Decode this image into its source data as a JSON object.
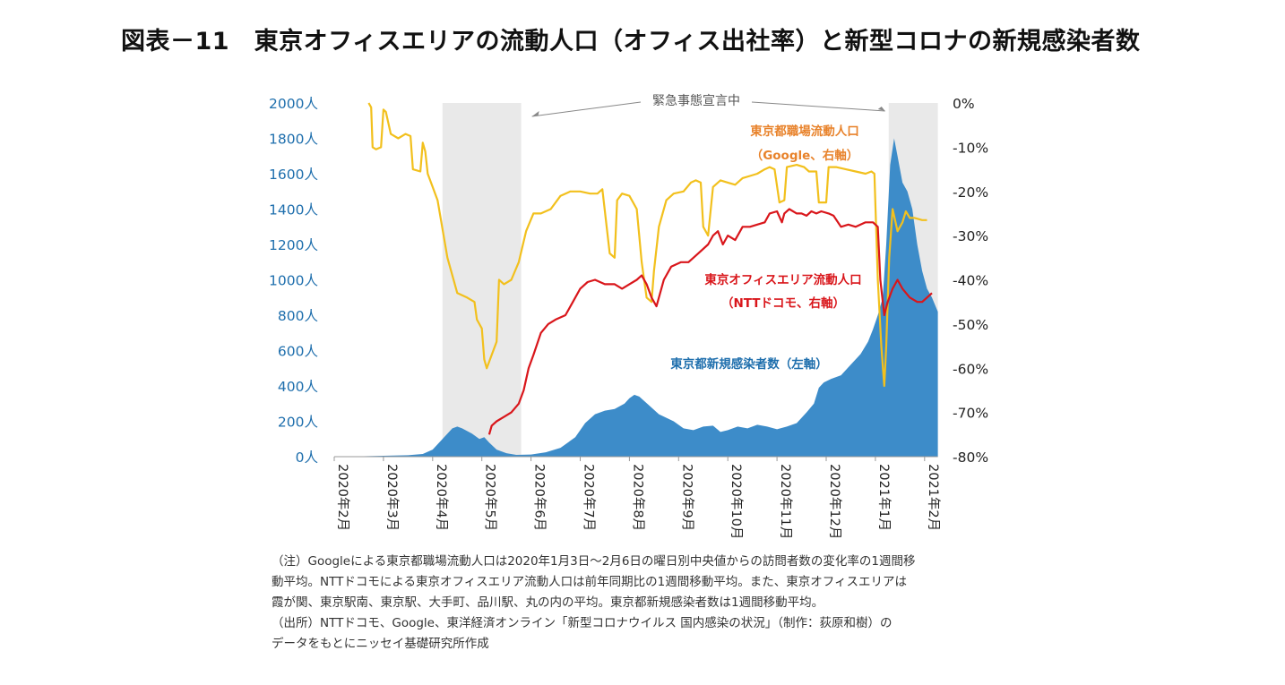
{
  "title": "図表－11　東京オフィスエリアの流動人口（オフィス出社率）と新型コロナの新規感染者数",
  "colors": {
    "cases": "#3d8cc9",
    "google": "#f2c01d",
    "ntt": "#d9161b",
    "shade": "#e9e9e9",
    "left_tick": "#1f6fad",
    "google_label": "#e8822a",
    "ntt_label": "#d9161b",
    "cases_label": "#1f6fad"
  },
  "chart_data": {
    "type": "area+line",
    "y_left": {
      "range": [
        0,
        2000
      ],
      "ticks": [
        "0人",
        "200人",
        "400人",
        "600人",
        "800人",
        "1000人",
        "1200人",
        "1400人",
        "1600人",
        "1800人",
        "2000人"
      ]
    },
    "y_right": {
      "range": [
        -80,
        0
      ],
      "ticks": [
        "-80%",
        "-70%",
        "-60%",
        "-50%",
        "-40%",
        "-30%",
        "-20%",
        "-10%",
        "0%"
      ]
    },
    "x_ticks": [
      "2020年2月",
      "2020年3月",
      "2020年4月",
      "2020年5月",
      "2020年6月",
      "2020年7月",
      "2020年8月",
      "2020年9月",
      "2020年10月",
      "2020年11月",
      "2020年12月",
      "2021年1月",
      "2021年2月"
    ],
    "x_range_months": [
      0,
      12.27
    ],
    "emergency_periods": [
      [
        2.2,
        3.8
      ],
      [
        11.27,
        12.27
      ]
    ],
    "emergency_label": "緊急事態宣言中",
    "series": [
      {
        "name": "東京都新規感染者数（左軸）",
        "axis": "left",
        "type": "area",
        "points": [
          [
            0,
            0
          ],
          [
            0.5,
            2
          ],
          [
            1,
            5
          ],
          [
            1.5,
            8
          ],
          [
            1.8,
            15
          ],
          [
            2.0,
            40
          ],
          [
            2.2,
            100
          ],
          [
            2.4,
            160
          ],
          [
            2.5,
            170
          ],
          [
            2.6,
            160
          ],
          [
            2.8,
            130
          ],
          [
            2.95,
            100
          ],
          [
            3.05,
            110
          ],
          [
            3.15,
            80
          ],
          [
            3.3,
            40
          ],
          [
            3.5,
            20
          ],
          [
            3.7,
            10
          ],
          [
            4.0,
            12
          ],
          [
            4.3,
            25
          ],
          [
            4.6,
            50
          ],
          [
            4.9,
            110
          ],
          [
            5.1,
            190
          ],
          [
            5.3,
            240
          ],
          [
            5.5,
            260
          ],
          [
            5.7,
            270
          ],
          [
            5.9,
            300
          ],
          [
            6.0,
            330
          ],
          [
            6.1,
            350
          ],
          [
            6.2,
            340
          ],
          [
            6.4,
            290
          ],
          [
            6.6,
            240
          ],
          [
            6.9,
            200
          ],
          [
            7.1,
            160
          ],
          [
            7.3,
            150
          ],
          [
            7.5,
            170
          ],
          [
            7.7,
            175
          ],
          [
            7.85,
            140
          ],
          [
            8.0,
            150
          ],
          [
            8.2,
            170
          ],
          [
            8.4,
            160
          ],
          [
            8.6,
            180
          ],
          [
            8.8,
            170
          ],
          [
            9.0,
            155
          ],
          [
            9.2,
            170
          ],
          [
            9.4,
            190
          ],
          [
            9.6,
            250
          ],
          [
            9.75,
            300
          ],
          [
            9.85,
            390
          ],
          [
            9.95,
            420
          ],
          [
            10.1,
            440
          ],
          [
            10.3,
            460
          ],
          [
            10.5,
            520
          ],
          [
            10.7,
            580
          ],
          [
            10.85,
            650
          ],
          [
            10.95,
            720
          ],
          [
            11.05,
            800
          ],
          [
            11.15,
            900
          ],
          [
            11.22,
            1200
          ],
          [
            11.3,
            1650
          ],
          [
            11.38,
            1800
          ],
          [
            11.45,
            1700
          ],
          [
            11.55,
            1550
          ],
          [
            11.65,
            1500
          ],
          [
            11.75,
            1400
          ],
          [
            11.85,
            1200
          ],
          [
            11.95,
            1050
          ],
          [
            12.05,
            950
          ],
          [
            12.15,
            900
          ],
          [
            12.27,
            820
          ],
          [
            12.27,
            0
          ]
        ]
      },
      {
        "name": "東京都職場流動人口（Google、右軸）",
        "axis": "right",
        "type": "line",
        "points": [
          [
            0.7,
            0
          ],
          [
            0.75,
            -1
          ],
          [
            0.78,
            -10
          ],
          [
            0.85,
            -10.5
          ],
          [
            0.95,
            -10
          ],
          [
            1.0,
            -1.5
          ],
          [
            1.05,
            -2
          ],
          [
            1.15,
            -7
          ],
          [
            1.3,
            -8
          ],
          [
            1.45,
            -7
          ],
          [
            1.55,
            -7.5
          ],
          [
            1.6,
            -15
          ],
          [
            1.75,
            -15.5
          ],
          [
            1.8,
            -9
          ],
          [
            1.85,
            -11
          ],
          [
            1.9,
            -16
          ],
          [
            2.0,
            -19
          ],
          [
            2.1,
            -22
          ],
          [
            2.3,
            -35
          ],
          [
            2.5,
            -43
          ],
          [
            2.7,
            -44
          ],
          [
            2.85,
            -45
          ],
          [
            2.9,
            -49
          ],
          [
            3.0,
            -51
          ],
          [
            3.05,
            -58
          ],
          [
            3.1,
            -60
          ],
          [
            3.2,
            -57
          ],
          [
            3.3,
            -54
          ],
          [
            3.35,
            -40
          ],
          [
            3.45,
            -41
          ],
          [
            3.6,
            -40
          ],
          [
            3.75,
            -36
          ],
          [
            3.9,
            -29
          ],
          [
            4.05,
            -25
          ],
          [
            4.2,
            -25
          ],
          [
            4.4,
            -24
          ],
          [
            4.6,
            -21
          ],
          [
            4.8,
            -20
          ],
          [
            5.0,
            -20
          ],
          [
            5.2,
            -20.5
          ],
          [
            5.35,
            -20.5
          ],
          [
            5.45,
            -19.5
          ],
          [
            5.6,
            -34
          ],
          [
            5.7,
            -35
          ],
          [
            5.75,
            -22
          ],
          [
            5.85,
            -20.5
          ],
          [
            6.0,
            -21
          ],
          [
            6.15,
            -24
          ],
          [
            6.25,
            -36
          ],
          [
            6.35,
            -44
          ],
          [
            6.45,
            -45
          ],
          [
            6.5,
            -38
          ],
          [
            6.6,
            -28
          ],
          [
            6.75,
            -22
          ],
          [
            6.9,
            -20.5
          ],
          [
            7.1,
            -20
          ],
          [
            7.25,
            -18
          ],
          [
            7.35,
            -17.5
          ],
          [
            7.45,
            -18
          ],
          [
            7.5,
            -28
          ],
          [
            7.6,
            -30
          ],
          [
            7.7,
            -19
          ],
          [
            7.85,
            -17.5
          ],
          [
            8.0,
            -18
          ],
          [
            8.15,
            -18.5
          ],
          [
            8.3,
            -17
          ],
          [
            8.45,
            -16.5
          ],
          [
            8.6,
            -16
          ],
          [
            8.75,
            -15
          ],
          [
            8.85,
            -14.5
          ],
          [
            8.95,
            -15
          ],
          [
            9.05,
            -22.5
          ],
          [
            9.15,
            -22
          ],
          [
            9.2,
            -14.5
          ],
          [
            9.4,
            -14
          ],
          [
            9.55,
            -14.5
          ],
          [
            9.65,
            -15.5
          ],
          [
            9.8,
            -15.5
          ],
          [
            9.85,
            -22.5
          ],
          [
            10.0,
            -22.5
          ],
          [
            10.05,
            -14.5
          ],
          [
            10.2,
            -14.5
          ],
          [
            10.4,
            -15
          ],
          [
            10.6,
            -15.5
          ],
          [
            10.8,
            -16
          ],
          [
            10.92,
            -15.5
          ],
          [
            10.98,
            -16
          ],
          [
            11.05,
            -40
          ],
          [
            11.12,
            -55
          ],
          [
            11.18,
            -64
          ],
          [
            11.22,
            -55
          ],
          [
            11.28,
            -35
          ],
          [
            11.35,
            -24
          ],
          [
            11.45,
            -29
          ],
          [
            11.55,
            -27
          ],
          [
            11.62,
            -24.5
          ],
          [
            11.7,
            -26
          ],
          [
            11.8,
            -26
          ],
          [
            11.95,
            -26.5
          ],
          [
            12.05,
            -26.5
          ]
        ]
      },
      {
        "name": "東京オフィスエリア流動人口（NTTドコモ、右軸）",
        "axis": "right",
        "type": "line",
        "points": [
          [
            3.15,
            -75
          ],
          [
            3.2,
            -73
          ],
          [
            3.3,
            -72
          ],
          [
            3.45,
            -71
          ],
          [
            3.6,
            -70
          ],
          [
            3.75,
            -68
          ],
          [
            3.85,
            -65
          ],
          [
            3.95,
            -60
          ],
          [
            4.05,
            -57
          ],
          [
            4.2,
            -52
          ],
          [
            4.35,
            -50
          ],
          [
            4.5,
            -49
          ],
          [
            4.7,
            -48
          ],
          [
            4.85,
            -45
          ],
          [
            5.0,
            -42
          ],
          [
            5.15,
            -40.5
          ],
          [
            5.3,
            -40
          ],
          [
            5.5,
            -41
          ],
          [
            5.7,
            -41
          ],
          [
            5.85,
            -42
          ],
          [
            6.0,
            -41
          ],
          [
            6.15,
            -40
          ],
          [
            6.25,
            -39
          ],
          [
            6.35,
            -41
          ],
          [
            6.45,
            -44
          ],
          [
            6.55,
            -46
          ],
          [
            6.7,
            -40
          ],
          [
            6.85,
            -37
          ],
          [
            7.05,
            -36
          ],
          [
            7.2,
            -36
          ],
          [
            7.4,
            -34
          ],
          [
            7.6,
            -32
          ],
          [
            7.7,
            -30
          ],
          [
            7.8,
            -29
          ],
          [
            7.9,
            -32
          ],
          [
            8.0,
            -30
          ],
          [
            8.15,
            -31
          ],
          [
            8.3,
            -28
          ],
          [
            8.45,
            -28
          ],
          [
            8.6,
            -27.5
          ],
          [
            8.75,
            -27
          ],
          [
            8.85,
            -25
          ],
          [
            9.0,
            -24.5
          ],
          [
            9.1,
            -27
          ],
          [
            9.15,
            -25
          ],
          [
            9.25,
            -24
          ],
          [
            9.4,
            -25
          ],
          [
            9.5,
            -25
          ],
          [
            9.6,
            -25.5
          ],
          [
            9.7,
            -24.5
          ],
          [
            9.8,
            -25
          ],
          [
            9.9,
            -24.5
          ],
          [
            10.05,
            -25
          ],
          [
            10.15,
            -25.5
          ],
          [
            10.3,
            -28
          ],
          [
            10.45,
            -27.5
          ],
          [
            10.6,
            -28
          ],
          [
            10.7,
            -27.5
          ],
          [
            10.8,
            -27
          ],
          [
            10.95,
            -27
          ],
          [
            11.05,
            -28
          ],
          [
            11.1,
            -40
          ],
          [
            11.18,
            -48
          ],
          [
            11.25,
            -45
          ],
          [
            11.35,
            -42
          ],
          [
            11.45,
            -40
          ],
          [
            11.55,
            -42
          ],
          [
            11.7,
            -44
          ],
          [
            11.85,
            -45
          ],
          [
            11.95,
            -45
          ],
          [
            12.05,
            -44
          ],
          [
            12.15,
            -43
          ]
        ]
      }
    ],
    "annotations": [
      {
        "text": "東京都職場流動人口",
        "color": "google_label"
      },
      {
        "text": "（Google、右軸）",
        "color": "google_label"
      },
      {
        "text": "東京オフィスエリア流動人口",
        "color": "ntt_label"
      },
      {
        "text": "（NTTドコモ、右軸）",
        "color": "ntt_label"
      },
      {
        "text": "東京都新規感染者数（左軸）",
        "color": "cases_label"
      }
    ]
  },
  "notes": [
    "（注）Googleによる東京都職場流動人口は2020年1月3日～2月6日の曜日別中央値からの訪問者数の変化率の1週間移",
    "動平均。NTTドコモによる東京オフィスエリア流動人口は前年同期比の1週間移動平均。また、東京オフィスエリアは",
    "霞が関、東京駅南、東京駅、大手町、品川駅、丸の内の平均。東京都新規感染者数は1週間移動平均。",
    "（出所）NTTドコモ、Google、東洋経済オンライン「新型コロナウイルス 国内感染の状況」（制作：荻原和樹）の",
    "データをもとにニッセイ基礎研究所作成"
  ]
}
